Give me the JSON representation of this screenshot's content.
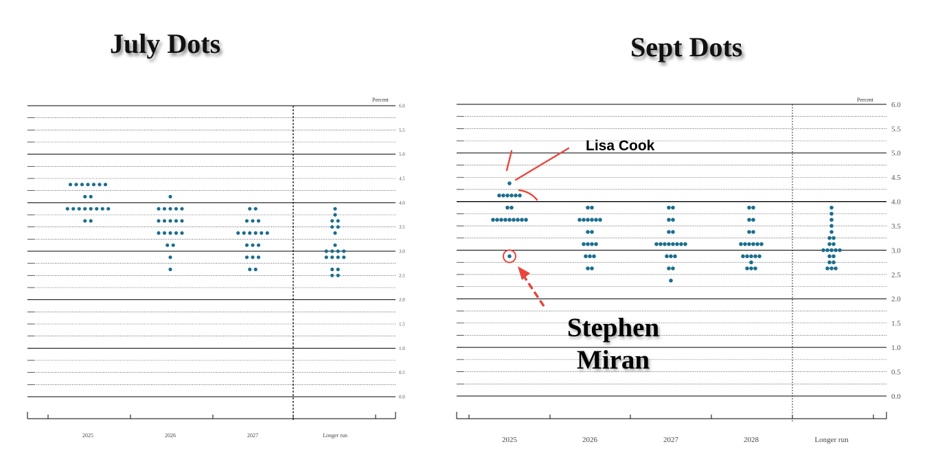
{
  "chart_data": [
    {
      "type": "scatter",
      "title": "July Dots",
      "unit_label": "Percent",
      "categories": [
        "2025",
        "2026",
        "2027",
        "Longer run"
      ],
      "ylim": [
        0,
        6
      ],
      "yticks": [
        "0.0",
        "0.5",
        "1.0",
        "1.5",
        "2.0",
        "2.5",
        "3.0",
        "3.5",
        "4.0",
        "4.5",
        "5.0",
        "5.5",
        "6.0"
      ],
      "grid": true,
      "dots": [
        {
          "category": "2025",
          "rates": [
            {
              "y": 4.375,
              "count": 7
            },
            {
              "y": 4.125,
              "count": 2
            },
            {
              "y": 3.875,
              "count": 8
            },
            {
              "y": 3.625,
              "count": 2
            }
          ]
        },
        {
          "category": "2026",
          "rates": [
            {
              "y": 4.125,
              "count": 1
            },
            {
              "y": 3.875,
              "count": 5
            },
            {
              "y": 3.625,
              "count": 5
            },
            {
              "y": 3.375,
              "count": 5
            },
            {
              "y": 3.125,
              "count": 2
            },
            {
              "y": 2.875,
              "count": 1
            },
            {
              "y": 2.625,
              "count": 1
            }
          ]
        },
        {
          "category": "2027",
          "rates": [
            {
              "y": 3.875,
              "count": 2
            },
            {
              "y": 3.625,
              "count": 3
            },
            {
              "y": 3.375,
              "count": 6
            },
            {
              "y": 3.125,
              "count": 3
            },
            {
              "y": 2.875,
              "count": 3
            },
            {
              "y": 2.625,
              "count": 2
            }
          ]
        },
        {
          "category": "Longer run",
          "rates": [
            {
              "y": 3.875,
              "count": 1
            },
            {
              "y": 3.75,
              "count": 1
            },
            {
              "y": 3.625,
              "count": 2
            },
            {
              "y": 3.5,
              "count": 2
            },
            {
              "y": 3.375,
              "count": 1
            },
            {
              "y": 3.125,
              "count": 1
            },
            {
              "y": 3.0,
              "count": 4
            },
            {
              "y": 2.875,
              "count": 4
            },
            {
              "y": 2.625,
              "count": 2
            },
            {
              "y": 2.5,
              "count": 2
            }
          ]
        }
      ]
    },
    {
      "type": "scatter",
      "title": "Sept Dots",
      "unit_label": "Percent",
      "categories": [
        "2025",
        "2026",
        "2027",
        "2028",
        "Longer run"
      ],
      "ylim": [
        0,
        6
      ],
      "yticks": [
        "0.0",
        "0.5",
        "1.0",
        "1.5",
        "2.0",
        "2.5",
        "3.0",
        "3.5",
        "4.0",
        "4.5",
        "5.0",
        "5.5",
        "6.0"
      ],
      "grid": true,
      "dots": [
        {
          "category": "2025",
          "rates": [
            {
              "y": 4.375,
              "count": 1
            },
            {
              "y": 4.125,
              "count": 6
            },
            {
              "y": 3.875,
              "count": 2
            },
            {
              "y": 3.625,
              "count": 9
            },
            {
              "y": 2.875,
              "count": 1
            }
          ]
        },
        {
          "category": "2026",
          "rates": [
            {
              "y": 3.875,
              "count": 2
            },
            {
              "y": 3.625,
              "count": 6
            },
            {
              "y": 3.375,
              "count": 2
            },
            {
              "y": 3.125,
              "count": 4
            },
            {
              "y": 2.875,
              "count": 3
            },
            {
              "y": 2.625,
              "count": 2
            }
          ]
        },
        {
          "category": "2027",
          "rates": [
            {
              "y": 3.875,
              "count": 2
            },
            {
              "y": 3.625,
              "count": 2
            },
            {
              "y": 3.375,
              "count": 2
            },
            {
              "y": 3.125,
              "count": 8
            },
            {
              "y": 2.875,
              "count": 3
            },
            {
              "y": 2.625,
              "count": 2
            },
            {
              "y": 2.375,
              "count": 1
            }
          ]
        },
        {
          "category": "2028",
          "rates": [
            {
              "y": 3.875,
              "count": 2
            },
            {
              "y": 3.625,
              "count": 2
            },
            {
              "y": 3.375,
              "count": 2
            },
            {
              "y": 3.125,
              "count": 6
            },
            {
              "y": 2.875,
              "count": 5
            },
            {
              "y": 2.75,
              "count": 1
            },
            {
              "y": 2.625,
              "count": 3
            }
          ]
        },
        {
          "category": "Longer run",
          "rates": [
            {
              "y": 3.875,
              "count": 1
            },
            {
              "y": 3.75,
              "count": 1
            },
            {
              "y": 3.625,
              "count": 1
            },
            {
              "y": 3.5,
              "count": 1
            },
            {
              "y": 3.375,
              "count": 1
            },
            {
              "y": 3.25,
              "count": 2
            },
            {
              "y": 3.125,
              "count": 2
            },
            {
              "y": 3.0,
              "count": 5
            },
            {
              "y": 2.875,
              "count": 2
            },
            {
              "y": 2.75,
              "count": 2
            },
            {
              "y": 2.625,
              "count": 3
            }
          ]
        }
      ],
      "annotations": [
        {
          "text": "Lisa Cook",
          "points_to": {
            "category": "2025",
            "y": 4.375
          }
        },
        {
          "text_lines": [
            "Stephen",
            "Miran"
          ],
          "points_to": {
            "category": "2025",
            "y": 2.875
          }
        }
      ]
    }
  ],
  "colors": {
    "dot": "#1a6e8e",
    "annotation": "#e8453c",
    "grid": "#000000"
  }
}
